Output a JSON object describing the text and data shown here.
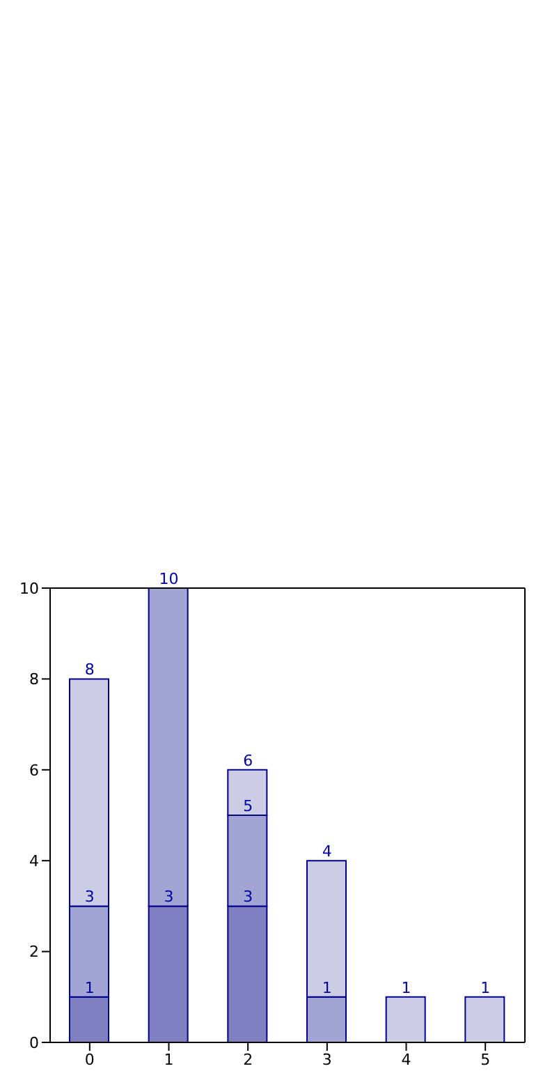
{
  "chart_data": {
    "type": "bar",
    "stacked": true,
    "categories": [
      "0",
      "1",
      "2",
      "3",
      "4",
      "5"
    ],
    "series": [
      {
        "color": "#8080c0",
        "values": [
          1,
          3,
          3,
          null,
          null,
          null
        ]
      },
      {
        "color": "#a2a5d3",
        "values": [
          2,
          7,
          2,
          1,
          null,
          null
        ]
      },
      {
        "color": "#cccce4",
        "values": [
          5,
          0,
          1,
          3,
          1,
          1
        ]
      }
    ],
    "annotations": [
      {
        "text": "1",
        "x": "0",
        "y": 1
      },
      {
        "text": "3",
        "x": "0",
        "y": 3
      },
      {
        "text": "8",
        "x": "0",
        "y": 8
      },
      {
        "text": "3",
        "x": "1",
        "y": 3
      },
      {
        "text": "10",
        "x": "1",
        "y": 10
      },
      {
        "text": "3",
        "x": "2",
        "y": 3
      },
      {
        "text": "5",
        "x": "2",
        "y": 5
      },
      {
        "text": "6",
        "x": "2",
        "y": 6
      },
      {
        "text": "1",
        "x": "3",
        "y": 1
      },
      {
        "text": "4",
        "x": "3",
        "y": 4
      },
      {
        "text": "1",
        "x": "4",
        "y": 1
      },
      {
        "text": "1",
        "x": "5",
        "y": 1
      }
    ],
    "ylim": [
      0,
      10
    ],
    "yticks": [
      0,
      2,
      4,
      6,
      8,
      10
    ],
    "grid": false
  }
}
